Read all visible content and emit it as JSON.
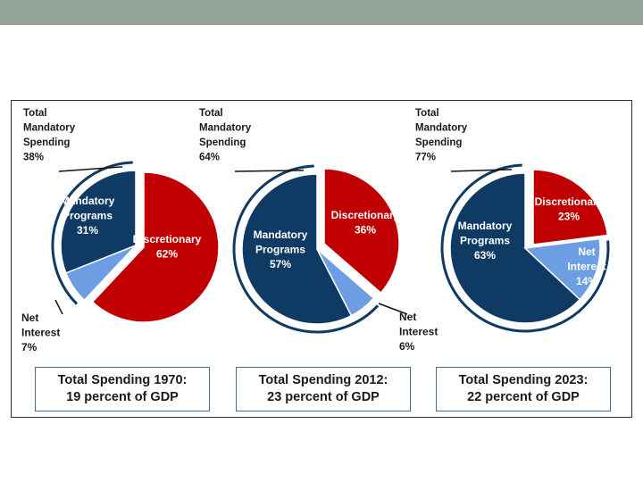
{
  "colors": {
    "mandatory": "#0f3a63",
    "discretionary": "#c00000",
    "net_interest": "#6d9ee3",
    "ring": "#0f3a63"
  },
  "chart_data": [
    {
      "type": "pie",
      "year": "1970",
      "total_mandatory": {
        "lines": [
          "Total",
          "Mandatory",
          "Spending",
          "38%"
        ],
        "value": 38
      },
      "slices": [
        {
          "name": "Mandatory Programs",
          "lines": [
            "Mandatory",
            "Programs",
            "31%"
          ],
          "value": 31,
          "color": "#0f3a63"
        },
        {
          "name": "Net Interest",
          "lines": [
            "Net",
            "Interest",
            "7%"
          ],
          "value": 7,
          "color": "#6d9ee3"
        },
        {
          "name": "Discretionary",
          "lines": [
            "Discretionary",
            "62%"
          ],
          "value": 62,
          "color": "#c00000"
        }
      ],
      "caption": [
        "Total Spending 1970:",
        "19 percent of GDP"
      ]
    },
    {
      "type": "pie",
      "year": "2012",
      "total_mandatory": {
        "lines": [
          "Total",
          "Mandatory",
          "Spending",
          "64%"
        ],
        "value": 64
      },
      "slices": [
        {
          "name": "Mandatory Programs",
          "lines": [
            "Mandatory",
            "Programs",
            "57%"
          ],
          "value": 57,
          "color": "#0f3a63"
        },
        {
          "name": "Net Interest",
          "lines": [
            "Net",
            "Interest",
            "6%"
          ],
          "value": 6,
          "color": "#6d9ee3"
        },
        {
          "name": "Discretionary",
          "lines": [
            "Discretionary",
            "36%"
          ],
          "value": 36,
          "color": "#c00000"
        }
      ],
      "caption": [
        "Total Spending 2012:",
        "23 percent of GDP"
      ]
    },
    {
      "type": "pie",
      "year": "2023",
      "total_mandatory": {
        "lines": [
          "Total",
          "Mandatory",
          "Spending",
          "77%"
        ],
        "value": 77
      },
      "slices": [
        {
          "name": "Mandatory Programs",
          "lines": [
            "Mandatory",
            "Programs",
            "63%"
          ],
          "value": 63,
          "color": "#0f3a63"
        },
        {
          "name": "Net Interest",
          "lines": [
            "Net",
            "Interest",
            "14%"
          ],
          "value": 14,
          "color": "#6d9ee3"
        },
        {
          "name": "Discretionary",
          "lines": [
            "Discretionary",
            "23%"
          ],
          "value": 23,
          "color": "#c00000"
        }
      ],
      "caption": [
        "Total Spending 2023:",
        "22 percent of GDP"
      ]
    }
  ]
}
